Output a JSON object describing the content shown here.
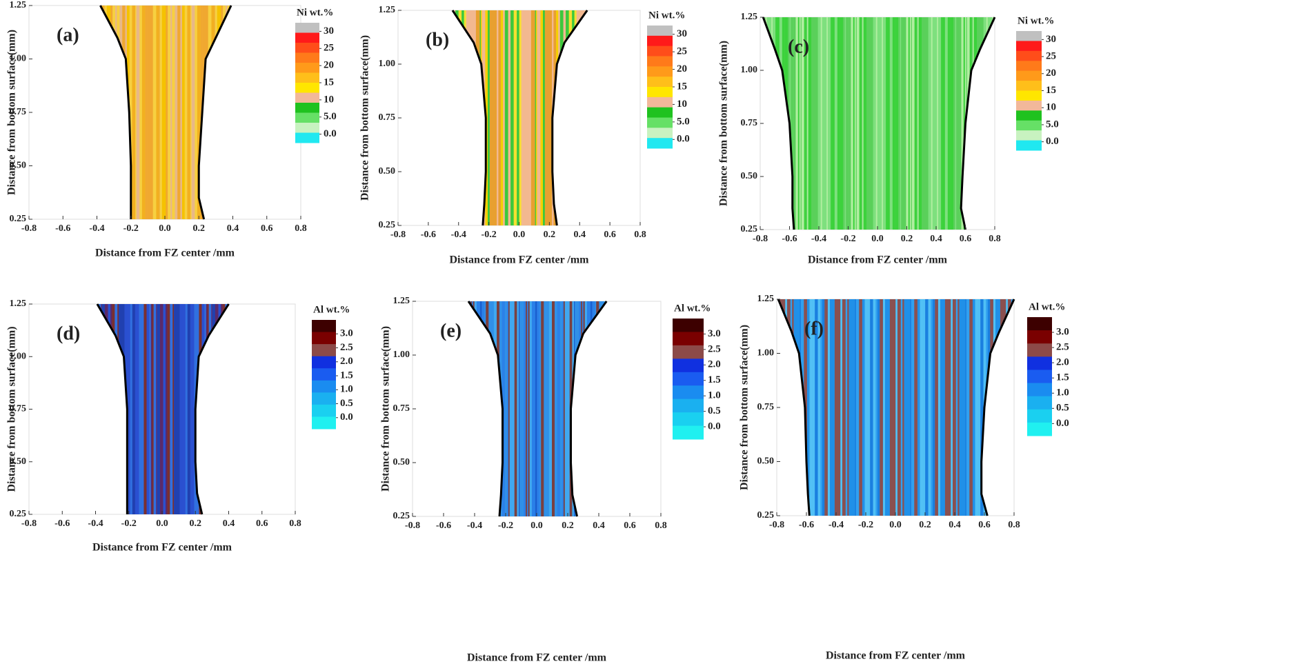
{
  "chart_data": [
    {
      "type": "contour",
      "panel_label": "(a)",
      "xlabel": "Distance from FZ center /mm",
      "ylabel": "Distance from bottom surface(mm)",
      "xlim": [
        -0.8,
        0.8
      ],
      "ylim": [
        0.25,
        1.25
      ],
      "xticks": [
        -0.8,
        -0.6,
        -0.4,
        -0.2,
        {
          "value": 0,
          "label": "0.0"
        },
        0.2,
        0.4,
        0.6,
        0.8
      ],
      "yticks": [
        0.25,
        {
          "value": 0.5,
          "label": "0.50"
        },
        0.75,
        {
          "value": 1,
          "label": "1.00"
        },
        1.25
      ],
      "boundary": {
        "y": [
          1.25,
          1.1,
          1.0,
          0.75,
          0.5,
          0.35,
          0.25
        ],
        "left": [
          -0.38,
          -0.28,
          -0.23,
          -0.21,
          -0.2,
          -0.2,
          -0.2
        ],
        "right": [
          0.39,
          0.3,
          0.24,
          0.22,
          0.2,
          0.2,
          0.23
        ]
      },
      "fill_colors": [
        "#f5c200",
        "#f0a830",
        "#f7d040",
        "#e8b888",
        "#f2b020"
      ],
      "colorbar": {
        "title": "Ni wt.%",
        "lim": [
          -2.5,
          32.5
        ],
        "colors": [
          "#c0c0c0",
          "#ff1a1a",
          "#ff4d1a",
          "#ff7a1a",
          "#ff9a1a",
          "#ffbf1a",
          "#ffe600",
          "#f2b89a",
          "#1fc21f",
          "#66e066",
          "#c8f2c0",
          "#20e8f0"
        ],
        "ticks": [
          30,
          25,
          20,
          15,
          10,
          {
            "value": 5,
            "label": "5.0"
          },
          {
            "value": 0,
            "label": "0.0"
          }
        ]
      }
    },
    {
      "type": "contour",
      "panel_label": "(b)",
      "xlabel": "Distance from FZ center /mm",
      "ylabel": "Distance from bottom surface(mm)",
      "xlim": [
        -0.8,
        0.8
      ],
      "ylim": [
        0.25,
        1.25
      ],
      "xticks": [
        -0.8,
        -0.6,
        -0.4,
        -0.2,
        {
          "value": 0,
          "label": "0.0"
        },
        0.2,
        0.4,
        0.6,
        0.8
      ],
      "yticks": [
        0.25,
        {
          "value": 0.5,
          "label": "0.50"
        },
        0.75,
        {
          "value": 1,
          "label": "1.00"
        },
        1.25
      ],
      "boundary": {
        "y": [
          1.25,
          1.1,
          1.0,
          0.75,
          0.5,
          0.35,
          0.25
        ],
        "left": [
          -0.44,
          -0.3,
          -0.25,
          -0.22,
          -0.22,
          -0.23,
          -0.24
        ],
        "right": [
          0.45,
          0.3,
          0.25,
          0.22,
          0.22,
          0.23,
          0.25
        ]
      },
      "fill_colors": [
        "#f5d000",
        "#f2b890",
        "#3cc83c",
        "#f5e030",
        "#e8a030"
      ],
      "colorbar": {
        "title": "Ni wt.%",
        "lim": [
          -2.5,
          32.5
        ],
        "colors": [
          "#c0c0c0",
          "#ff1a1a",
          "#ff4d1a",
          "#ff7a1a",
          "#ff9a1a",
          "#ffbf1a",
          "#ffe600",
          "#f2b89a",
          "#1fc21f",
          "#66e066",
          "#c8f2c0",
          "#20e8f0"
        ],
        "ticks": [
          30,
          25,
          20,
          15,
          10,
          {
            "value": 5,
            "label": "5.0"
          },
          {
            "value": 0,
            "label": "0.0"
          }
        ]
      }
    },
    {
      "type": "contour",
      "panel_label": "(c)",
      "xlabel": "Distance from FZ center /mm",
      "ylabel": "Distance from bottom surface(mm)",
      "xlim": [
        -0.8,
        0.8
      ],
      "ylim": [
        0.25,
        1.25
      ],
      "xticks": [
        -0.8,
        -0.6,
        -0.4,
        -0.2,
        {
          "value": 0,
          "label": "0.0"
        },
        0.2,
        0.4,
        0.6,
        0.8
      ],
      "yticks": [
        0.25,
        {
          "value": 0.5,
          "label": "0.50"
        },
        0.75,
        {
          "value": 1,
          "label": "1.00"
        },
        1.25
      ],
      "boundary": {
        "y": [
          1.25,
          1.1,
          1.0,
          0.75,
          0.5,
          0.35,
          0.25
        ],
        "left": [
          -0.78,
          -0.7,
          -0.65,
          -0.6,
          -0.58,
          -0.58,
          -0.57
        ],
        "right": [
          0.8,
          0.7,
          0.64,
          0.6,
          0.58,
          0.57,
          0.6
        ]
      },
      "fill_colors": [
        "#3cd23c",
        "#7ee07e",
        "#b0eea0",
        "#5ad05a"
      ],
      "colorbar": {
        "title": "Ni wt.%",
        "lim": [
          -2.5,
          32.5
        ],
        "colors": [
          "#c0c0c0",
          "#ff1a1a",
          "#ff4d1a",
          "#ff7a1a",
          "#ff9a1a",
          "#ffbf1a",
          "#ffe600",
          "#f2b89a",
          "#1fc21f",
          "#66e066",
          "#c8f2c0",
          "#20e8f0"
        ],
        "ticks": [
          30,
          25,
          20,
          15,
          10,
          {
            "value": 5,
            "label": "5.0"
          },
          {
            "value": 0,
            "label": "0.0"
          }
        ]
      }
    },
    {
      "type": "contour",
      "panel_label": "(d)",
      "xlabel": "Distance from FZ center /mm",
      "ylabel": "Distance from bottom surface(mm)",
      "xlim": [
        -0.8,
        0.8
      ],
      "ylim": [
        0.25,
        1.25
      ],
      "xticks": [
        -0.8,
        -0.6,
        -0.4,
        -0.2,
        {
          "value": 0,
          "label": "0.0"
        },
        0.2,
        0.4,
        0.6,
        0.8
      ],
      "yticks": [
        0.25,
        {
          "value": 0.5,
          "label": "0.50"
        },
        0.75,
        {
          "value": 1,
          "label": "1.00"
        },
        1.25
      ],
      "boundary": {
        "y": [
          1.25,
          1.1,
          1.0,
          0.75,
          0.5,
          0.35,
          0.25
        ],
        "left": [
          -0.39,
          -0.28,
          -0.23,
          -0.21,
          -0.21,
          -0.21,
          -0.21
        ],
        "right": [
          0.4,
          0.28,
          0.22,
          0.2,
          0.2,
          0.21,
          0.24
        ]
      },
      "fill_colors": [
        "#2a50d0",
        "#7a3030",
        "#3070e0",
        "#5a2a6a",
        "#2040b0"
      ],
      "colorbar": {
        "title": "Al wt.%",
        "lim": [
          -0.4,
          3.5
        ],
        "colors": [
          "#3d0000",
          "#7a0000",
          "#8c4a48",
          "#1030e0",
          "#1a5cf0",
          "#1a8cf0",
          "#1ab0f0",
          "#1ad0f0",
          "#20f0f0"
        ],
        "ticks": [
          {
            "value": 3,
            "label": "3.0"
          },
          2.5,
          {
            "value": 2,
            "label": "2.0"
          },
          1.5,
          {
            "value": 1,
            "label": "1.0"
          },
          0.5,
          {
            "value": 0,
            "label": "0.0"
          }
        ]
      }
    },
    {
      "type": "contour",
      "panel_label": "(e)",
      "xlabel": "Distance from FZ center /mm",
      "ylabel": "Distance from bottom surface(mm)",
      "xlim": [
        -0.8,
        0.8
      ],
      "ylim": [
        0.25,
        1.25
      ],
      "xticks": [
        -0.8,
        -0.6,
        -0.4,
        -0.2,
        {
          "value": 0,
          "label": "0.0"
        },
        0.2,
        0.4,
        0.6,
        0.8
      ],
      "yticks": [
        0.25,
        {
          "value": 0.5,
          "label": "0.50"
        },
        0.75,
        {
          "value": 1,
          "label": "1.00"
        },
        1.25
      ],
      "boundary": {
        "y": [
          1.25,
          1.1,
          1.0,
          0.75,
          0.5,
          0.35,
          0.25
        ],
        "left": [
          -0.44,
          -0.3,
          -0.25,
          -0.22,
          -0.22,
          -0.23,
          -0.24
        ],
        "right": [
          0.45,
          0.3,
          0.25,
          0.22,
          0.22,
          0.23,
          0.26
        ]
      },
      "fill_colors": [
        "#2a80e8",
        "#1a60d0",
        "#40a8f0",
        "#7a4040",
        "#3090e8"
      ],
      "colorbar": {
        "title": "Al wt.%",
        "lim": [
          -0.4,
          3.5
        ],
        "colors": [
          "#3d0000",
          "#7a0000",
          "#8c4a48",
          "#1030e0",
          "#1a5cf0",
          "#1a8cf0",
          "#1ab0f0",
          "#1ad0f0",
          "#20f0f0"
        ],
        "ticks": [
          {
            "value": 3,
            "label": "3.0"
          },
          2.5,
          {
            "value": 2,
            "label": "2.0"
          },
          1.5,
          {
            "value": 1,
            "label": "1.0"
          },
          0.5,
          {
            "value": 0,
            "label": "0.0"
          }
        ]
      }
    },
    {
      "type": "contour",
      "panel_label": "(f)",
      "xlabel": "Distance from FZ center /mm",
      "ylabel": "Distance from bottom surface(mm)",
      "xlim": [
        -0.8,
        0.8
      ],
      "ylim": [
        0.25,
        1.25
      ],
      "xticks": [
        -0.8,
        -0.6,
        -0.4,
        -0.2,
        {
          "value": 0,
          "label": "0.0"
        },
        0.2,
        0.4,
        0.6,
        0.8
      ],
      "yticks": [
        0.25,
        {
          "value": 0.5,
          "label": "0.50"
        },
        0.75,
        {
          "value": 1,
          "label": "1.00"
        },
        1.25
      ],
      "boundary": {
        "y": [
          1.25,
          1.1,
          1.0,
          0.75,
          0.5,
          0.35,
          0.25
        ],
        "left": [
          -0.79,
          -0.7,
          -0.65,
          -0.61,
          -0.6,
          -0.59,
          -0.58
        ],
        "right": [
          0.8,
          0.7,
          0.64,
          0.6,
          0.58,
          0.58,
          0.62
        ]
      },
      "fill_colors": [
        "#30a0f0",
        "#1a80e0",
        "#50c0f5",
        "#2090e8",
        "#8a5050"
      ],
      "colorbar": {
        "title": "Al wt.%",
        "lim": [
          -0.4,
          3.5
        ],
        "colors": [
          "#3d0000",
          "#7a0000",
          "#8c4a48",
          "#1030e0",
          "#1a5cf0",
          "#1a8cf0",
          "#1ab0f0",
          "#1ad0f0",
          "#20f0f0"
        ],
        "ticks": [
          {
            "value": 3,
            "label": "3.0"
          },
          2.5,
          {
            "value": 2,
            "label": "2.0"
          },
          1.5,
          {
            "value": 1,
            "label": "1.0"
          },
          0.5,
          {
            "value": 0,
            "label": "0.0"
          }
        ]
      }
    }
  ]
}
